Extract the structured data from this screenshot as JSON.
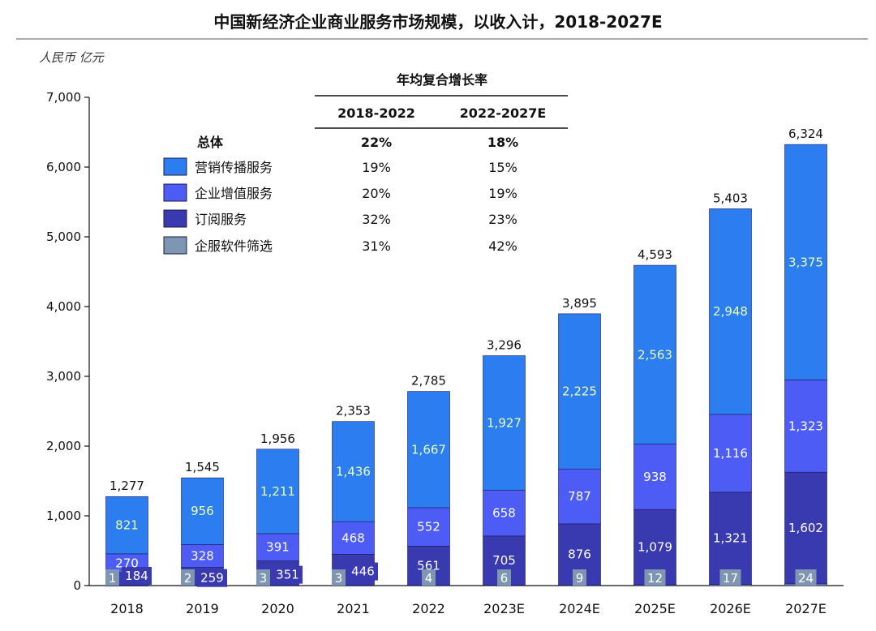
{
  "chart_data": {
    "type": "bar",
    "stacked": true,
    "title": "中国新经济企业商业服务市场规模，以收入计，2018-2027E",
    "unit_label": "人民币 亿元",
    "categories": [
      "2018",
      "2019",
      "2020",
      "2021",
      "2022",
      "2023E",
      "2024E",
      "2025E",
      "2026E",
      "2027E"
    ],
    "totals": [
      1277,
      1545,
      1956,
      2353,
      2785,
      3296,
      3895,
      4593,
      5403,
      6324
    ],
    "total_labels": [
      "1,277",
      "1,545",
      "1,956",
      "2,353",
      "2,785",
      "3,296",
      "3,895",
      "4,593",
      "5,403",
      "6,324"
    ],
    "ylim": [
      0,
      7000
    ],
    "yticks": [
      0,
      1000,
      2000,
      3000,
      4000,
      5000,
      6000,
      7000
    ],
    "ytick_labels": [
      "0",
      "1,000",
      "2,000",
      "3,000",
      "4,000",
      "5,000",
      "6,000",
      "7,000"
    ],
    "series": [
      {
        "name": "企服软件筛选",
        "color": "#7f96b2",
        "label_color": "#ffffff",
        "values": [
          1,
          2,
          3,
          3,
          4,
          6,
          9,
          12,
          17,
          24
        ],
        "labels": [
          "1",
          "2",
          "3",
          "3",
          "4",
          "6",
          "9",
          "12",
          "17",
          "24"
        ]
      },
      {
        "name": "订阅服务",
        "color": "#3a3ab0",
        "label_color": "#ffffff",
        "values": [
          184,
          259,
          351,
          446,
          561,
          705,
          876,
          1079,
          1321,
          1602
        ],
        "labels": [
          "184",
          "259",
          "351",
          "446",
          "561",
          "705",
          "876",
          "1,079",
          "1,321",
          "1,602"
        ]
      },
      {
        "name": "企业增值服务",
        "color": "#4d5cf5",
        "label_color": "#ffffff",
        "values": [
          270,
          328,
          391,
          468,
          552,
          658,
          787,
          938,
          1116,
          1323
        ],
        "labels": [
          "270",
          "328",
          "391",
          "468",
          "552",
          "658",
          "787",
          "938",
          "1,116",
          "1,323"
        ]
      },
      {
        "name": "营销传播服务",
        "color": "#2c7df0",
        "label_color": "#e8ffb0",
        "values": [
          821,
          956,
          1211,
          1436,
          1667,
          1927,
          2225,
          2563,
          2948,
          3375
        ],
        "labels": [
          "821",
          "956",
          "1,211",
          "1,436",
          "1,667",
          "1,927",
          "2,225",
          "2,563",
          "2,948",
          "3,375"
        ]
      }
    ],
    "legend_placement": "top-left",
    "grid": false
  },
  "cagr_table": {
    "title": "年均复合增长率",
    "headers": [
      "2018-2022",
      "2022-2027E"
    ],
    "rows": [
      {
        "label": "总体",
        "bold": true,
        "values": [
          "22%",
          "18%"
        ]
      },
      {
        "label": "营销传播服务",
        "values": [
          "19%",
          "15%"
        ],
        "color": "#2c7df0"
      },
      {
        "label": "企业增值服务",
        "values": [
          "20%",
          "19%"
        ],
        "color": "#4d5cf5"
      },
      {
        "label": "订阅服务",
        "values": [
          "32%",
          "23%"
        ],
        "color": "#3a3ab0"
      },
      {
        "label": "企服软件筛选",
        "values": [
          "31%",
          "42%"
        ],
        "color": "#7f96b2"
      }
    ]
  }
}
